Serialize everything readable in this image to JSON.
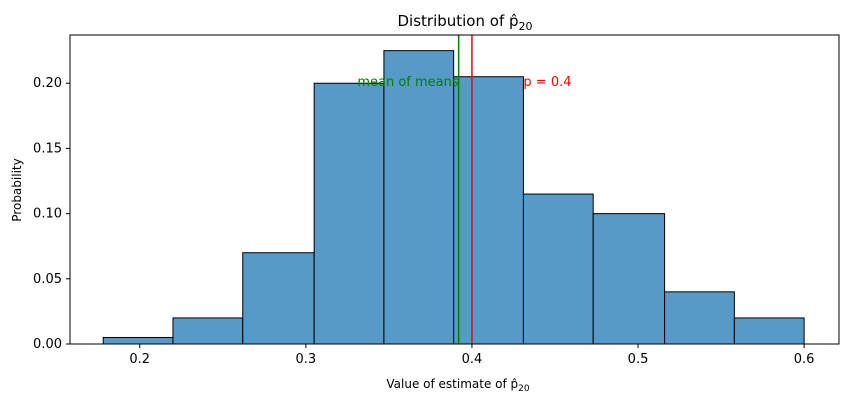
{
  "chart_data": {
    "type": "histogram",
    "title": "Distribution of p̂",
    "title_subscript": "20",
    "xlabel": "Value of estimate of p̂",
    "xlabel_subscript": "20",
    "ylabel": "Probability",
    "xlim": [
      0.158,
      0.621
    ],
    "ylim": [
      0,
      0.237
    ],
    "xticks": [
      0.2,
      0.3,
      0.4,
      0.5,
      0.6
    ],
    "xtick_labels": [
      "0.2",
      "0.3",
      "0.4",
      "0.5",
      "0.6"
    ],
    "yticks": [
      0.0,
      0.05,
      0.1,
      0.15,
      0.2
    ],
    "ytick_labels": [
      "0.00",
      "0.05",
      "0.10",
      "0.15",
      "0.20"
    ],
    "bins": [
      {
        "x0": 0.178,
        "x1": 0.22,
        "value": 0.005
      },
      {
        "x0": 0.22,
        "x1": 0.262,
        "value": 0.02
      },
      {
        "x0": 0.262,
        "x1": 0.305,
        "value": 0.07
      },
      {
        "x0": 0.305,
        "x1": 0.347,
        "value": 0.2
      },
      {
        "x0": 0.347,
        "x1": 0.389,
        "value": 0.225
      },
      {
        "x0": 0.389,
        "x1": 0.431,
        "value": 0.205
      },
      {
        "x0": 0.431,
        "x1": 0.473,
        "value": 0.115
      },
      {
        "x0": 0.473,
        "x1": 0.516,
        "value": 0.1
      },
      {
        "x0": 0.516,
        "x1": 0.558,
        "value": 0.04
      },
      {
        "x0": 0.558,
        "x1": 0.6,
        "value": 0.02
      }
    ],
    "bar_color": "#5799c7",
    "bar_edge_color": "#000000",
    "vlines": [
      {
        "x": 0.392,
        "color": "#008000",
        "label": "mean of means",
        "label_x": 0.331,
        "label_y": 0.2,
        "align": "start"
      },
      {
        "x": 0.4,
        "color": "#ff0000",
        "label": "p = 0.4",
        "label_x": 0.431,
        "label_y": 0.2,
        "align": "start"
      }
    ],
    "grid": false
  }
}
